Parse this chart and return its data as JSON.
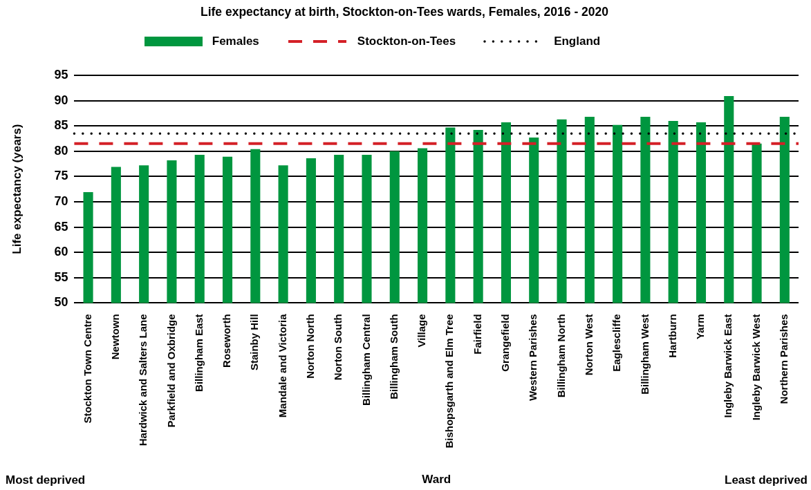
{
  "chart_data": {
    "type": "bar",
    "title": "Life expectancy at birth, Stockton-on-Tees wards, Females, 2016 - 2020",
    "xlabel": "Ward",
    "ylabel": "Life expectancy (years)",
    "categories": [
      "Stockton Town Centre",
      "Newtown",
      "Hardwick and Salters Lane",
      "Parkfield and Oxbridge",
      "Billingham East",
      "Roseworth",
      "Stainby Hill",
      "Mandale and Victoria",
      "Norton North",
      "Norton South",
      "Billingham Central",
      "Billingham South",
      "Village",
      "Bishopsgarth and Elm Tree",
      "Fairfield",
      "Grangefield",
      "Western Parishes",
      "Billingham North",
      "Norton West",
      "Eaglescliffe",
      "Billingham West",
      "Hartburn",
      "Yarm",
      "Ingleby Barwick East",
      "Ingleby Barwick West",
      "Northern Parishes"
    ],
    "series": [
      {
        "name": "Females",
        "color": "#00963f",
        "values": [
          71.9,
          76.9,
          77.2,
          78.2,
          79.3,
          78.9,
          80.4,
          77.2,
          78.6,
          79.3,
          79.3,
          80.0,
          80.6,
          84.7,
          84.2,
          85.7,
          82.7,
          86.3,
          86.8,
          85.2,
          86.8,
          86.0,
          85.7,
          90.9,
          81.5,
          86.8
        ]
      }
    ],
    "ylim": [
      50,
      95
    ],
    "yticks": [
      50,
      55,
      60,
      65,
      70,
      75,
      80,
      85,
      90,
      95
    ],
    "grid": "y",
    "legend": "top",
    "ref_lines": [
      {
        "axis": "y",
        "value": 81.5,
        "label": "Stockton-on-Tees",
        "color": "#d42027",
        "line_style": "dashed"
      },
      {
        "axis": "y",
        "value": 83.5,
        "label": "England",
        "color": "#000000",
        "line_style": "dotted"
      }
    ],
    "annotations": [
      "Most deprived",
      "Least deprived"
    ]
  }
}
